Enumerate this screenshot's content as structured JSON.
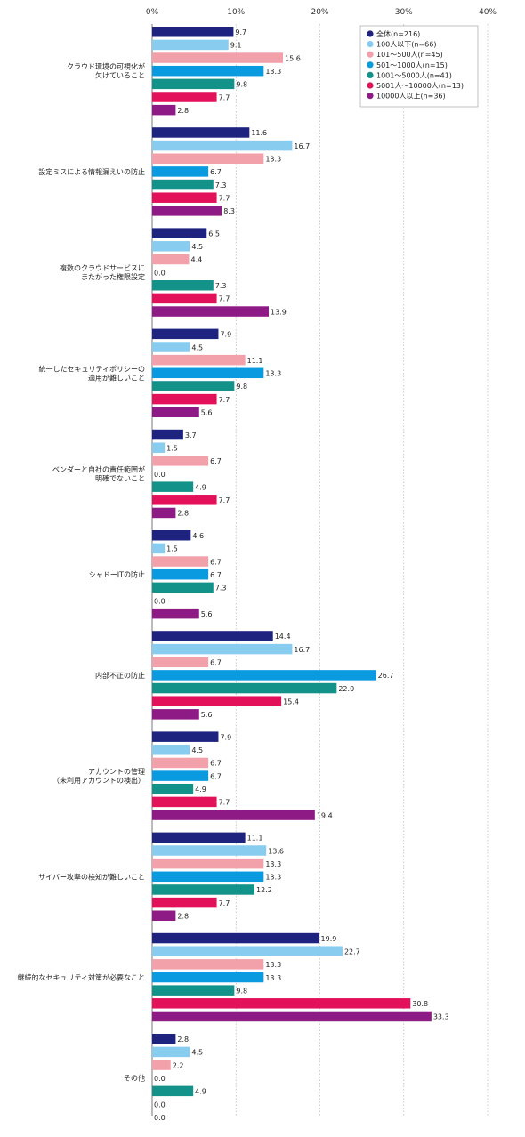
{
  "chart_data": {
    "type": "bar",
    "orientation": "horizontal",
    "xlim": [
      0,
      40
    ],
    "xticks": [
      "0%",
      "10%",
      "20%",
      "30%",
      "40%"
    ],
    "legend_position": "top-right",
    "grid": "vertical dotted",
    "categories": [
      [
        "クラウド環境の可視化が",
        "欠けていること"
      ],
      [
        "設定ミスによる情報漏えいの防止"
      ],
      [
        "複数のクラウドサービスに",
        "またがった権限設定"
      ],
      [
        "統一したセキュリティポリシーの",
        "適用が難しいこと"
      ],
      [
        "ベンダーと自社の責任範囲が",
        "明確でないこと"
      ],
      [
        "シャドーITの防止"
      ],
      [
        "内部不正の防止"
      ],
      [
        "アカウントの管理",
        "（未利用アカウントの検出）"
      ],
      [
        "サイバー攻撃の検知が難しいこと"
      ],
      [
        "継続的なセキュリティ対策が必要なこと"
      ],
      [
        "その他"
      ]
    ],
    "series": [
      {
        "name": "全体(n=216)",
        "color": "#1f2380",
        "values": [
          9.7,
          11.6,
          6.5,
          7.9,
          3.7,
          4.6,
          14.4,
          7.9,
          11.1,
          19.9,
          2.8
        ]
      },
      {
        "name": "100人以下(n=66)",
        "color": "#88cdf0",
        "values": [
          9.1,
          16.7,
          4.5,
          4.5,
          1.5,
          1.5,
          16.7,
          4.5,
          13.6,
          22.7,
          4.5
        ]
      },
      {
        "name": "101〜500人(n=45)",
        "color": "#f2a1aa",
        "values": [
          15.6,
          13.3,
          4.4,
          11.1,
          6.7,
          6.7,
          6.7,
          6.7,
          13.3,
          13.3,
          2.2
        ]
      },
      {
        "name": "501〜1000人(n=15)",
        "color": "#0a9ae0",
        "values": [
          13.3,
          6.7,
          0.0,
          13.3,
          0.0,
          6.7,
          26.7,
          6.7,
          13.3,
          13.3,
          0.0
        ]
      },
      {
        "name": "1001〜5000人(n=41)",
        "color": "#13928a",
        "values": [
          9.8,
          7.3,
          7.3,
          9.8,
          4.9,
          7.3,
          22.0,
          4.9,
          12.2,
          9.8,
          4.9
        ]
      },
      {
        "name": "5001人〜10000人(n=13)",
        "color": "#e3105a",
        "values": [
          7.7,
          7.7,
          7.7,
          7.7,
          7.7,
          0.0,
          15.4,
          7.7,
          7.7,
          30.8,
          0.0
        ]
      },
      {
        "name": "10000人以上(n=36)",
        "color": "#8e1a85",
        "values": [
          2.8,
          8.3,
          13.9,
          5.6,
          2.8,
          5.6,
          5.6,
          19.4,
          2.8,
          33.3,
          0.0
        ]
      }
    ]
  }
}
